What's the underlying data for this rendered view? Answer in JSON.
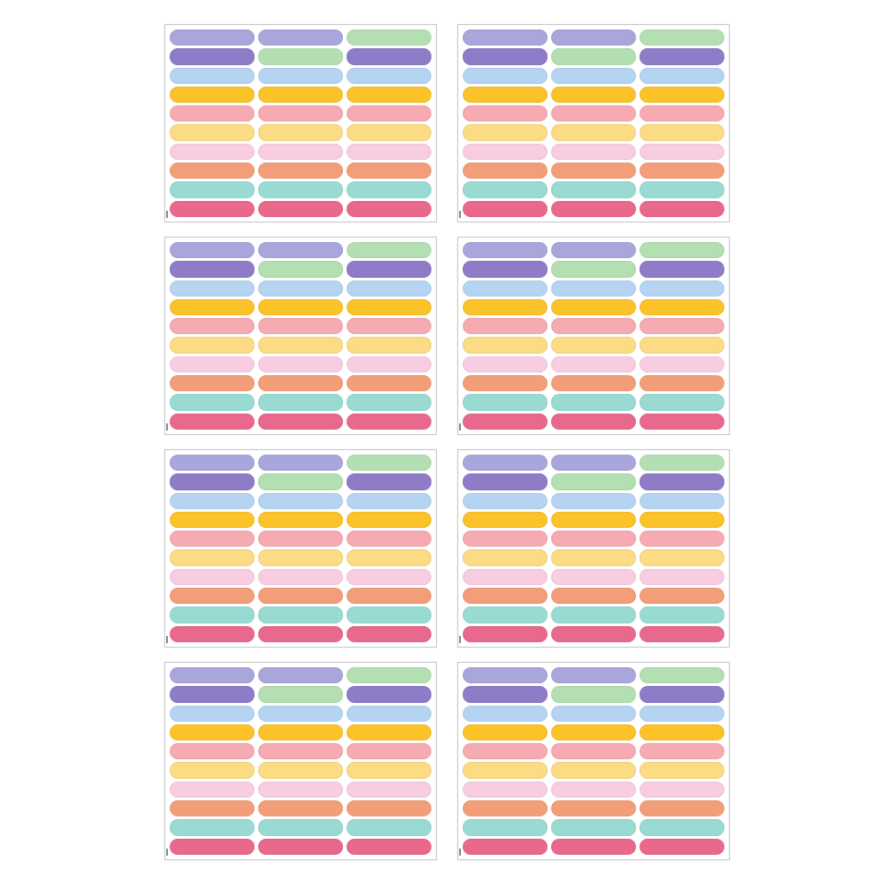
{
  "product": {
    "sheet_count": 8,
    "rows_per_sheet": 10,
    "columns_per_sheet": 3,
    "label_colors": [
      [
        "#a9a6dc",
        "#a9a6dc",
        "#b4dfb2"
      ],
      [
        "#8e7cc8",
        "#b4dfb2",
        "#8e7cc8"
      ],
      [
        "#b5d4f1",
        "#b5d4f1",
        "#b5d4f1"
      ],
      [
        "#fbc22a",
        "#fbc22a",
        "#fbc22a"
      ],
      [
        "#f6aab1",
        "#f6aab1",
        "#f6aab1"
      ],
      [
        "#fbdb84",
        "#fbdb84",
        "#fbdb84"
      ],
      [
        "#f8cde2",
        "#f8cde2",
        "#f8cde2"
      ],
      [
        "#f29f79",
        "#f29f79",
        "#f29f79"
      ],
      [
        "#99dbd3",
        "#99dbd3",
        "#99dbd3"
      ],
      [
        "#e9698d",
        "#e9698d",
        "#e9698d"
      ]
    ]
  }
}
